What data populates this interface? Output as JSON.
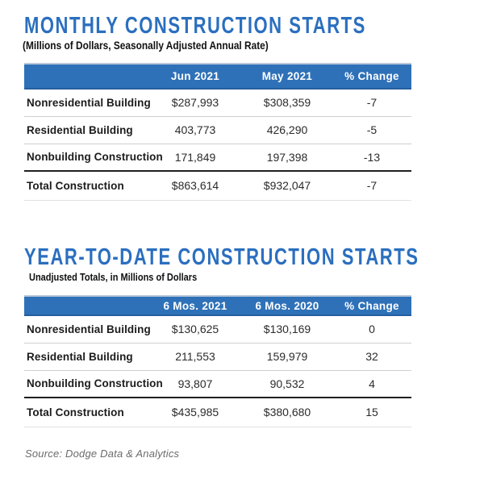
{
  "colors": {
    "title_blue": "#2B6FBF",
    "header_bar_blue": "#2E71B8",
    "header_bar_top_edge": "#BAC7D9",
    "header_bar_bottom_edge": "#265E9E",
    "row_divider_gray": "#cfcfcf",
    "total_rule_dark": "#1f1f1f",
    "source_gray": "#6b6b6b"
  },
  "tables": [
    {
      "title": "MONTHLY CONSTRUCTION STARTS",
      "subtitle": "(Millions of Dollars, Seasonally Adjusted Annual Rate)",
      "columns": [
        "Jun 2021",
        "May 2021",
        "% Change"
      ],
      "rows": [
        {
          "label": "Nonresidential Building",
          "c1": "$287,993",
          "c2": "$308,359",
          "c3": "-7"
        },
        {
          "label": "Residential Building",
          "c1": "403,773",
          "c2": "426,290",
          "c3": "-5"
        },
        {
          "label": "Nonbuilding Construction",
          "c1": "171,849",
          "c2": "197,398",
          "c3": "-13"
        },
        {
          "label": "Total Construction",
          "c1": "$863,614",
          "c2": "$932,047",
          "c3": "-7"
        }
      ]
    },
    {
      "title": "YEAR-TO-DATE CONSTRUCTION STARTS",
      "subtitle": "Unadjusted Totals, in Millions of Dollars",
      "columns": [
        "6 Mos. 2021",
        "6 Mos. 2020",
        "% Change"
      ],
      "rows": [
        {
          "label": "Nonresidential Building",
          "c1": "$130,625",
          "c2": "$130,169",
          "c3": "0"
        },
        {
          "label": "Residential Building",
          "c1": "211,553",
          "c2": "159,979",
          "c3": "32"
        },
        {
          "label": "Nonbuilding Construction",
          "c1": "93,807",
          "c2": "90,532",
          "c3": "4"
        },
        {
          "label": "Total Construction",
          "c1": "$435,985",
          "c2": "$380,680",
          "c3": "15"
        }
      ]
    }
  ],
  "source": "Source: Dodge Data & Analytics",
  "chart_data": [
    {
      "type": "table",
      "title": "Monthly Construction Starts",
      "subtitle": "Millions of Dollars, Seasonally Adjusted Annual Rate",
      "columns": [
        "Jun 2021",
        "May 2021",
        "% Change"
      ],
      "rows": [
        {
          "category": "Nonresidential Building",
          "jun_2021": 287993,
          "may_2021": 308359,
          "pct_change": -7
        },
        {
          "category": "Residential Building",
          "jun_2021": 403773,
          "may_2021": 426290,
          "pct_change": -5
        },
        {
          "category": "Nonbuilding Construction",
          "jun_2021": 171849,
          "may_2021": 197398,
          "pct_change": -13
        },
        {
          "category": "Total Construction",
          "jun_2021": 863614,
          "may_2021": 932047,
          "pct_change": -7
        }
      ]
    },
    {
      "type": "table",
      "title": "Year-to-Date Construction Starts",
      "subtitle": "Unadjusted Totals, in Millions of Dollars",
      "columns": [
        "6 Mos. 2021",
        "6 Mos. 2020",
        "% Change"
      ],
      "rows": [
        {
          "category": "Nonresidential Building",
          "mos6_2021": 130625,
          "mos6_2020": 130169,
          "pct_change": 0
        },
        {
          "category": "Residential Building",
          "mos6_2021": 211553,
          "mos6_2020": 159979,
          "pct_change": 32
        },
        {
          "category": "Nonbuilding Construction",
          "mos6_2021": 93807,
          "mos6_2020": 90532,
          "pct_change": 4
        },
        {
          "category": "Total Construction",
          "mos6_2021": 435985,
          "mos6_2020": 380680,
          "pct_change": 15
        }
      ]
    }
  ]
}
